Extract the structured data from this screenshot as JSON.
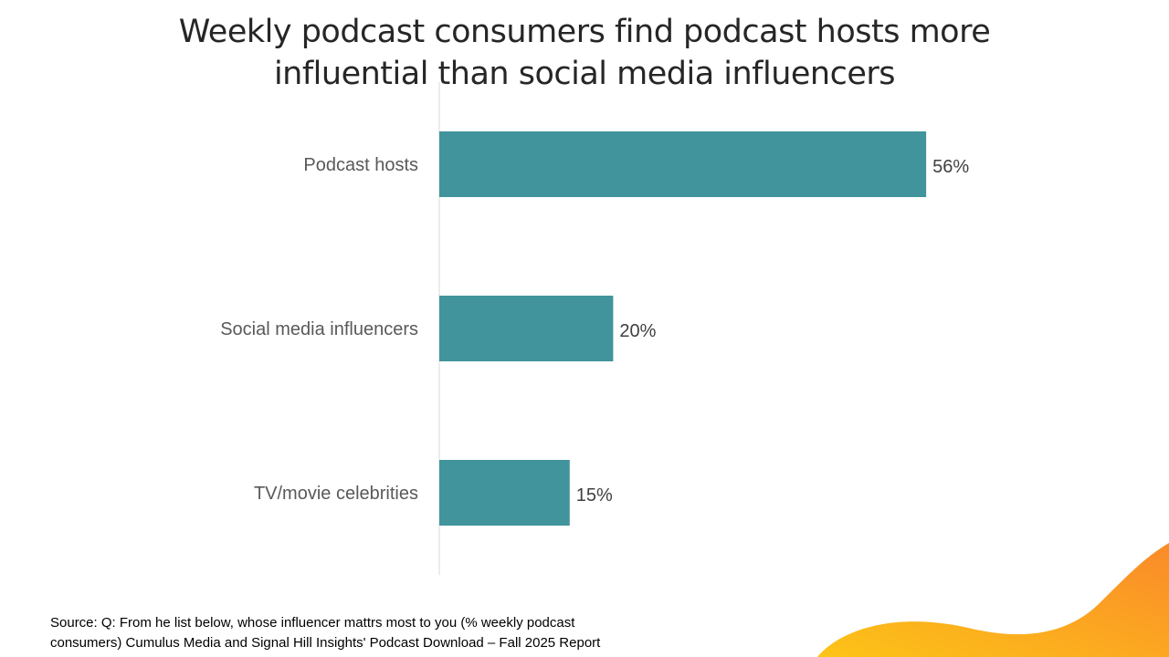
{
  "slide": {
    "title_line1": "Weekly podcast consumers find podcast hosts more",
    "title_line2": "influential than social media influencers",
    "source_line1": "Source: Q: From he list below, whose influencer mattrs most to you (% weekly podcast",
    "source_line2": "consumers) Cumulus Media and Signal Hill Insights' Podcast Download – Fall 2025 Report"
  },
  "colors": {
    "bar": "#41949c",
    "wave_start": "#fdc417",
    "wave_end": "#fa8a2a"
  },
  "chart_data": {
    "type": "bar",
    "orientation": "horizontal",
    "title": "Weekly podcast consumers find podcast hosts more influential than social media influencers",
    "categories": [
      "Podcast hosts",
      "Social media influencers",
      "TV/movie celebrities"
    ],
    "values": [
      56,
      20,
      15
    ],
    "value_labels": [
      "56%",
      "20%",
      "15%"
    ],
    "unit": "%",
    "xlim": [
      0,
      100
    ],
    "grid": false,
    "legend": "none"
  }
}
